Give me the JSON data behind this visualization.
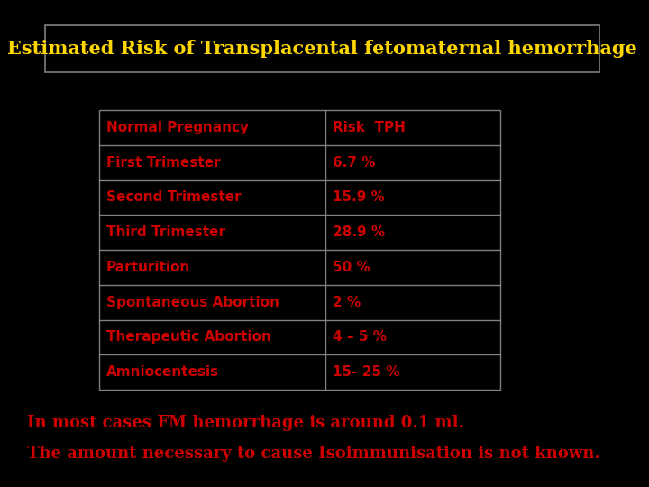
{
  "title": "Estimated Risk of Transplacental fetomaternal hemorrhage",
  "title_color": "#FFD700",
  "background_color": "#000000",
  "table_header": [
    "Normal Pregnancy",
    "Risk  TPH"
  ],
  "table_rows": [
    [
      "First Trimester",
      "6.7 %"
    ],
    [
      "Second Trimester",
      "15.9 %"
    ],
    [
      "Third Trimester",
      "28.9 %"
    ],
    [
      "Parturition",
      "50 %"
    ],
    [
      "Spontaneous Abortion",
      "2 %"
    ],
    [
      "Therapeutic Abortion",
      "4 – 5 %"
    ],
    [
      "Amniocentesis",
      "15- 25 %"
    ]
  ],
  "table_text_color": "#CC0000",
  "table_border_color": "#808080",
  "footer_line1": "In most cases FM hemorrhage is around 0.1 ml.",
  "footer_line2": "The amount necessary to cause Isoimmunisation is not known.",
  "footer_color": "#CC0000",
  "title_border_color": "#808080",
  "title_fontsize": 15,
  "table_fontsize": 11,
  "footer_fontsize": 13
}
